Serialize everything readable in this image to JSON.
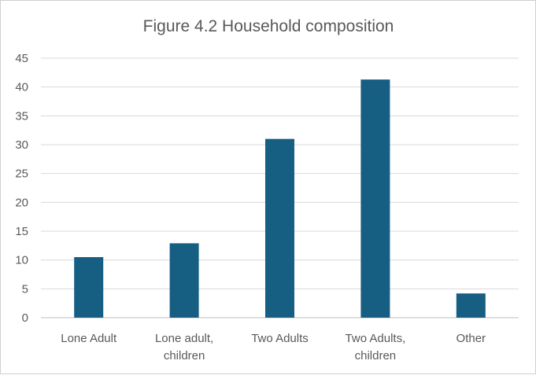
{
  "chart_data": {
    "type": "bar",
    "title": "Figure 4.2 Household composition",
    "categories": [
      [
        "Lone Adult"
      ],
      [
        "Lone adult,",
        "children"
      ],
      [
        "Two Adults"
      ],
      [
        "Two Adults,",
        "children"
      ],
      [
        "Other"
      ]
    ],
    "values": [
      10.5,
      12.9,
      31.0,
      41.3,
      4.2
    ],
    "ylim": [
      0,
      45
    ],
    "yticks": [
      0,
      5,
      10,
      15,
      20,
      25,
      30,
      35,
      40,
      45
    ],
    "bar_color": "#175E83",
    "grid": true,
    "legend": "none"
  }
}
